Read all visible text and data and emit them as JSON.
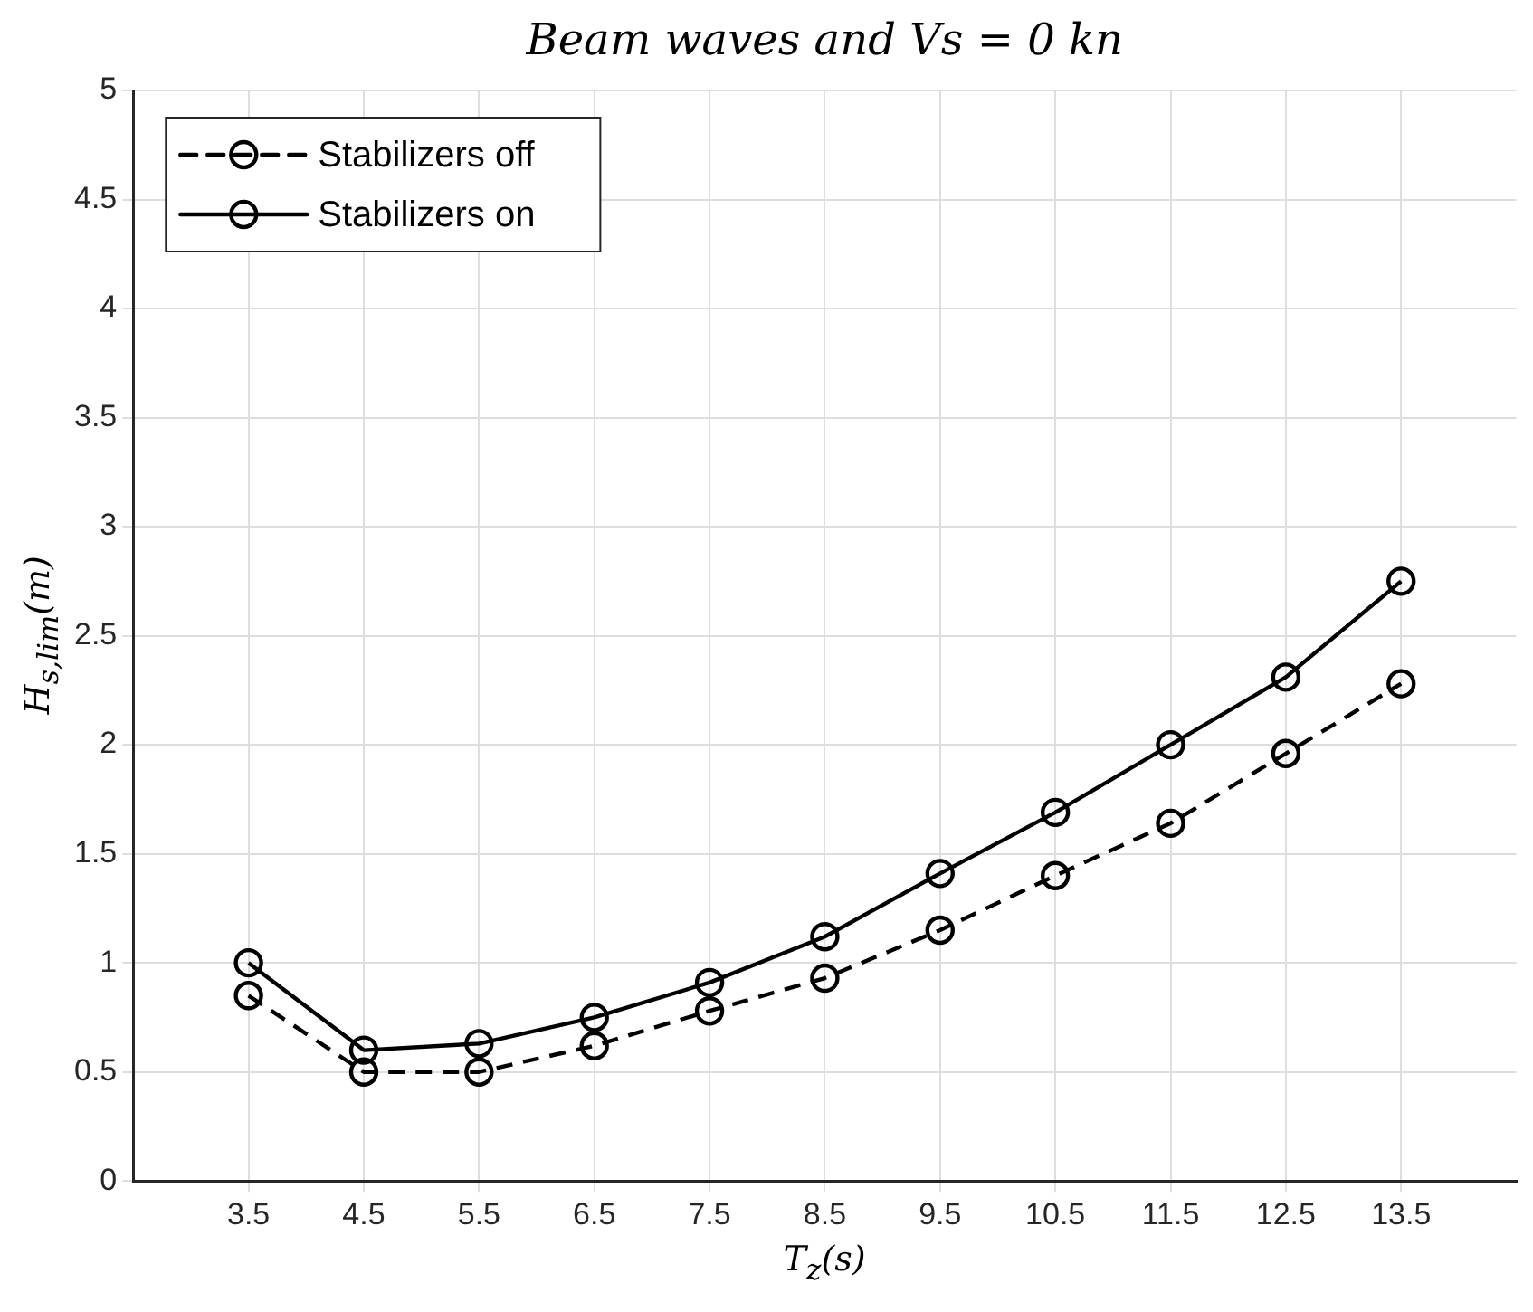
{
  "chart_data": {
    "type": "line",
    "title": "Beam waves and Vs = 0 kn",
    "xlabel": "T$_{z}$(s)",
    "ylabel": "H$_{s,lim}$(m)",
    "x": [
      3.5,
      4.5,
      5.5,
      6.5,
      7.5,
      8.5,
      9.5,
      10.5,
      11.5,
      12.5,
      13.5
    ],
    "xlim": [
      2.5,
      14.5
    ],
    "xticks": [
      3.5,
      4.5,
      5.5,
      6.5,
      7.5,
      8.5,
      9.5,
      10.5,
      11.5,
      12.5,
      13.5
    ],
    "ylim": [
      0,
      5
    ],
    "yticks": [
      0,
      0.5,
      1,
      1.5,
      2,
      2.5,
      3,
      3.5,
      4,
      4.5,
      5
    ],
    "grid": true,
    "legend": "top left",
    "marker": "circle",
    "series": [
      {
        "name": "Stabilizers off",
        "color": "#000000",
        "line_style": "dashed",
        "values": [
          0.85,
          0.5,
          0.5,
          0.62,
          0.78,
          0.93,
          1.15,
          1.4,
          1.64,
          1.96,
          2.28
        ]
      },
      {
        "name": "Stabilizers on",
        "color": "#000000",
        "line_style": "solid",
        "values": [
          1.0,
          0.6,
          0.63,
          0.75,
          0.91,
          1.12,
          1.41,
          1.69,
          2.0,
          2.31,
          2.75
        ]
      }
    ]
  }
}
